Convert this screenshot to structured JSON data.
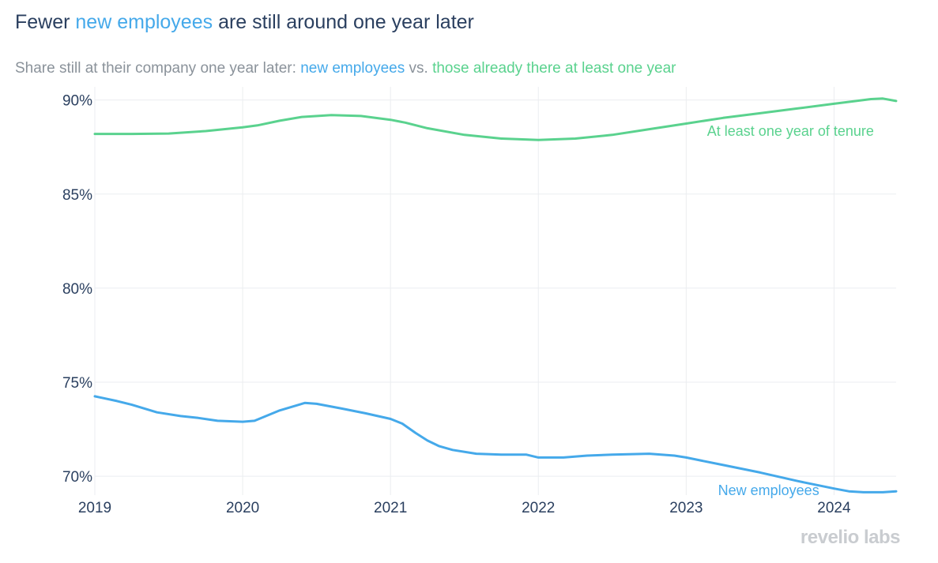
{
  "title": {
    "before": "Fewer ",
    "highlight": "new employees",
    "after": " are still around one year later"
  },
  "subtitle": {
    "prefix": "Share still at their company one year later: ",
    "series_a": "new employees",
    "middle": " vs. ",
    "series_b": "those already there at least one year"
  },
  "logo": "revelio labs",
  "colors": {
    "new": "#45a9ea",
    "tenured": "#5ad28e",
    "text": "#2a3f5f",
    "subtitle": "#8a929a",
    "grid": "#ebedf0"
  },
  "chart_data": {
    "type": "line",
    "x_range": [
      2019.0,
      2024.42
    ],
    "y_range": [
      69.0,
      90.7
    ],
    "x_ticks": [
      {
        "value": 2019,
        "label": "2019"
      },
      {
        "value": 2020,
        "label": "2020"
      },
      {
        "value": 2021,
        "label": "2021"
      },
      {
        "value": 2022,
        "label": "2022"
      },
      {
        "value": 2023,
        "label": "2023"
      },
      {
        "value": 2024,
        "label": "2024"
      }
    ],
    "y_ticks": [
      {
        "value": 70,
        "label": "70%"
      },
      {
        "value": 75,
        "label": "75%"
      },
      {
        "value": 80,
        "label": "80%"
      },
      {
        "value": 85,
        "label": "85%"
      },
      {
        "value": 90,
        "label": "90%"
      }
    ],
    "series": [
      {
        "name": "At least one year of tenure",
        "key": "tenured",
        "label": "At least one year of tenure",
        "label_anchor": {
          "x": 2024.27,
          "y": 88.1
        },
        "x": [
          2019.0,
          2019.25,
          2019.5,
          2019.75,
          2020.0,
          2020.1,
          2020.25,
          2020.4,
          2020.6,
          2020.8,
          2021.0,
          2021.1,
          2021.25,
          2021.5,
          2021.75,
          2022.0,
          2022.25,
          2022.5,
          2022.75,
          2023.0,
          2023.25,
          2023.5,
          2023.75,
          2024.0,
          2024.25,
          2024.33,
          2024.42
        ],
        "y": [
          88.2,
          88.2,
          88.22,
          88.35,
          88.55,
          88.65,
          88.9,
          89.1,
          89.2,
          89.15,
          88.95,
          88.8,
          88.5,
          88.15,
          87.95,
          87.88,
          87.95,
          88.15,
          88.45,
          88.75,
          89.05,
          89.3,
          89.55,
          89.8,
          90.05,
          90.08,
          89.95
        ]
      },
      {
        "name": "New employees",
        "key": "new",
        "label": "New employees",
        "label_anchor": {
          "x": 2023.9,
          "y": 69.0
        },
        "x": [
          2019.0,
          2019.15,
          2019.25,
          2019.42,
          2019.58,
          2019.7,
          2019.83,
          2020.0,
          2020.08,
          2020.25,
          2020.42,
          2020.5,
          2020.67,
          2020.83,
          2021.0,
          2021.08,
          2021.17,
          2021.25,
          2021.33,
          2021.42,
          2021.58,
          2021.75,
          2021.92,
          2022.0,
          2022.17,
          2022.33,
          2022.5,
          2022.75,
          2022.92,
          2023.0,
          2023.25,
          2023.5,
          2023.75,
          2024.0,
          2024.1,
          2024.2,
          2024.33,
          2024.42
        ],
        "y": [
          74.25,
          74.0,
          73.8,
          73.4,
          73.2,
          73.1,
          72.95,
          72.9,
          72.95,
          73.5,
          73.9,
          73.85,
          73.6,
          73.35,
          73.05,
          72.8,
          72.3,
          71.9,
          71.6,
          71.4,
          71.2,
          71.15,
          71.15,
          71.0,
          71.0,
          71.1,
          71.15,
          71.2,
          71.1,
          71.0,
          70.6,
          70.2,
          69.75,
          69.35,
          69.2,
          69.15,
          69.15,
          69.2
        ]
      }
    ]
  }
}
